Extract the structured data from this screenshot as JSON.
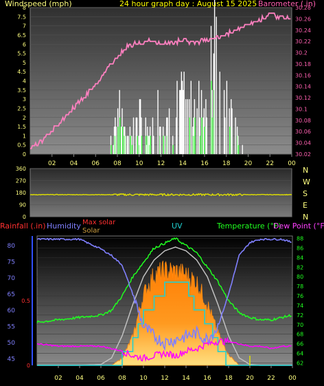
{
  "top_panel": {
    "left_label": "Windspeed (mph)",
    "title": "24 hour graph day : August 15 2025",
    "right_label": "Barometer (.in)",
    "left_ticks": [
      "0",
      "0.5",
      "1",
      "1.5",
      "2",
      "2.5",
      "3",
      "3.5",
      "4",
      "4.5",
      "5",
      "5.5",
      "6",
      "6.5",
      "7",
      "7.5",
      "8"
    ],
    "right_ticks": [
      "30.02",
      "30.04",
      "30.06",
      "30.08",
      "30.1",
      "30.12",
      "30.14",
      "30.16",
      "30.18",
      "30.2",
      "30.22",
      "30.24",
      "30.26",
      "30.28"
    ],
    "x_ticks": [
      "02",
      "04",
      "06",
      "08",
      "10",
      "12",
      "14",
      "16",
      "18",
      "20",
      "22",
      "00"
    ]
  },
  "mid_panel": {
    "left_ticks": [
      "0",
      "90",
      "180",
      "270",
      "360"
    ],
    "right_labels": [
      "N",
      "W",
      "S",
      "E",
      "N"
    ]
  },
  "bottom_panel": {
    "rain_label": "Rainfall (.in)",
    "humidity_label": "Humidity",
    "max_solar_label": "Max solar",
    "solar_label": "Solar",
    "uv_label": "UV",
    "temp_label": "Temperature (°F)",
    "dew_label": "Dew Point (°F)",
    "hum_ticks": [
      "45",
      "50",
      "55",
      "60",
      "65",
      "70",
      "75",
      "80"
    ],
    "rain_ticks": [
      "0",
      "0.5"
    ],
    "temp_ticks": [
      "62",
      "64",
      "66",
      "68",
      "70",
      "72",
      "74",
      "76",
      "78",
      "80",
      "82",
      "84",
      "86",
      "88"
    ],
    "x_ticks": [
      "02",
      "04",
      "06",
      "08",
      "10",
      "12",
      "14",
      "16",
      "18",
      "20",
      "22",
      "00"
    ]
  },
  "colors": {
    "windspeed": "#ffffff",
    "gust": "#40ff40",
    "barometer": "#ff80c0",
    "direction": "#e0e000",
    "humidity": "#8080ff",
    "temperature": "#20ff20",
    "dewpoint": "#ff00ff",
    "uv": "#20d0d0",
    "solar": "#ff8000",
    "max_solar": "#c0c0c0",
    "title": "#ffff00",
    "axis_left": "#ffff80",
    "axis_right": "#ff60b0"
  },
  "chart_data": [
    {
      "type": "line",
      "xlabel": "",
      "ylabel": "Windspeed (mph)",
      "ylabel_right": "Barometer (.in)",
      "x_hours": [
        0,
        2,
        4,
        6,
        8,
        10,
        12,
        14,
        16,
        18,
        20,
        22,
        24
      ],
      "ylim": [
        0,
        8
      ],
      "ylim_right": [
        30.02,
        30.28
      ],
      "series": [
        {
          "name": "Barometer",
          "axis": "right",
          "x": [
            0,
            1,
            2,
            3,
            4,
            5,
            6,
            7,
            7.5,
            8,
            8.5,
            9,
            10,
            11,
            12,
            13,
            14,
            15,
            16,
            17,
            18,
            19,
            20,
            21,
            22,
            23,
            24
          ],
          "values": [
            30.03,
            30.04,
            30.06,
            30.08,
            30.1,
            30.12,
            30.14,
            30.17,
            30.18,
            30.19,
            30.2,
            30.21,
            30.215,
            30.22,
            30.215,
            30.215,
            30.22,
            30.215,
            30.22,
            30.225,
            30.23,
            30.24,
            30.25,
            30.255,
            30.265,
            30.26,
            30.26
          ]
        },
        {
          "name": "Windspeed",
          "axis": "left",
          "x": [
            7.5,
            8,
            9,
            10,
            11,
            12,
            13,
            13.5,
            14,
            14.5,
            15,
            15.5,
            16,
            16.5,
            17,
            17.5,
            18,
            19,
            19.5
          ],
          "values": [
            1,
            3.5,
            1.5,
            3,
            1.5,
            4,
            2,
            3.5,
            4.5,
            3,
            3.5,
            5,
            4,
            6,
            8,
            4.5,
            3.5,
            2,
            0.5
          ]
        }
      ]
    },
    {
      "type": "line",
      "ylabel": "Wind direction",
      "ylim": [
        0,
        360
      ],
      "x_hours": [
        0,
        24
      ],
      "series": [
        {
          "name": "Direction",
          "values": [
            165,
            165
          ]
        }
      ]
    },
    {
      "type": "line",
      "ylabel": "Humidity",
      "ylabel_right": "Temperature (°F)",
      "ylim": [
        43,
        83
      ],
      "ylim_right": [
        61.5,
        88.5
      ],
      "x_hours": [
        0,
        2,
        4,
        6,
        7,
        8,
        9,
        10,
        11,
        12,
        13,
        14,
        15,
        16,
        17,
        18,
        19,
        20,
        21,
        22,
        23,
        24
      ],
      "series": [
        {
          "name": "Humidity",
          "axis": "left",
          "values": [
            82,
            82,
            82,
            79,
            77,
            74,
            65,
            55,
            52,
            50,
            51,
            52,
            53,
            51,
            55,
            65,
            77,
            81,
            82,
            82,
            82,
            81
          ]
        },
        {
          "name": "Temperature (°F)",
          "axis": "right",
          "values": [
            70.5,
            71,
            71.5,
            72,
            73,
            76,
            80,
            83,
            86,
            87,
            88,
            86.5,
            85,
            82,
            79,
            75,
            72.5,
            71.5,
            71,
            71,
            71.5,
            72
          ]
        },
        {
          "name": "Dew Point (°F)",
          "axis": "right",
          "values": [
            66,
            65.5,
            65.5,
            65.5,
            65,
            64.5,
            63.5,
            63,
            63.5,
            64,
            63.5,
            64.5,
            65,
            66,
            66.5,
            66.5,
            66,
            65.5,
            65.5,
            65,
            65.5,
            65.5
          ]
        },
        {
          "name": "UV",
          "axis": "left_scaled",
          "values": [
            0,
            0,
            0,
            0,
            0,
            0.5,
            1.5,
            3.5,
            4.5,
            5.5,
            6,
            5.5,
            4,
            3,
            1,
            0,
            0,
            0,
            0,
            0,
            0,
            0
          ]
        },
        {
          "name": "Solar",
          "axis": "left_scaled",
          "values": [
            0,
            0,
            0,
            0,
            0,
            40,
            160,
            390,
            500,
            520,
            520,
            500,
            460,
            340,
            180,
            60,
            0,
            0,
            0,
            0,
            0,
            0
          ]
        },
        {
          "name": "Max solar",
          "axis": "left_scaled",
          "values": [
            0,
            0,
            0,
            5,
            40,
            160,
            330,
            480,
            570,
            620,
            640,
            620,
            570,
            480,
            330,
            160,
            40,
            5,
            0,
            0,
            0,
            0
          ]
        }
      ]
    }
  ]
}
